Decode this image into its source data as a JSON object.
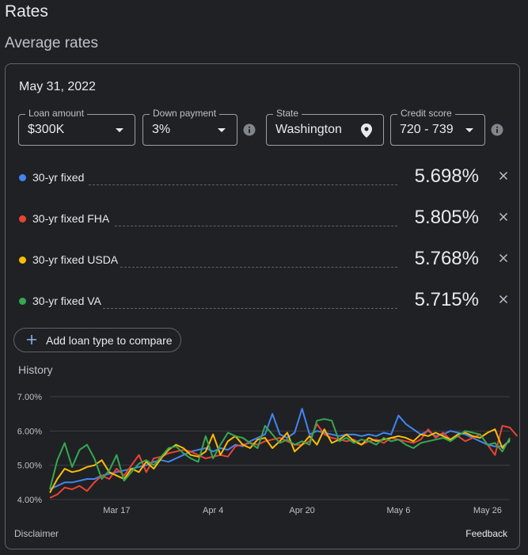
{
  "page_title": "Rates",
  "section_title": "Average rates",
  "date": "May 31, 2022",
  "filters": {
    "loan_amount": {
      "label": "Loan amount",
      "value": "$300K"
    },
    "down_payment": {
      "label": "Down payment",
      "value": "3%"
    },
    "state": {
      "label": "State",
      "value": "Washington"
    },
    "credit_score": {
      "label": "Credit score",
      "value": "720 - 739"
    }
  },
  "rates": [
    {
      "label": "30-yr fixed",
      "value": "5.698%",
      "color": "#4285f4"
    },
    {
      "label": "30-yr fixed FHA",
      "value": "5.805%",
      "color": "#ea4335"
    },
    {
      "label": "30-yr fixed USDA",
      "value": "5.768%",
      "color": "#fbbc04"
    },
    {
      "label": "30-yr fixed VA",
      "value": "5.715%",
      "color": "#34a853"
    }
  ],
  "add_button": "Add loan type to compare",
  "history_label": "History",
  "disclaimer": "Disclaimer",
  "feedback": "Feedback",
  "chart_data": {
    "type": "line",
    "title": "History",
    "y_tick_labels": [
      "7.00%",
      "6.00%",
      "5.00%",
      "4.00%"
    ],
    "y_ticks": [
      7,
      6,
      5,
      4
    ],
    "ylim": [
      4,
      7
    ],
    "x_tick_labels": [
      "Mar 17",
      "Apr 4",
      "Apr 20",
      "May 6",
      "May 26"
    ],
    "x_tick_positions": [
      9,
      22,
      34,
      47,
      59
    ],
    "grid": true,
    "series": [
      {
        "name": "30-yr fixed",
        "color": "#4285f4",
        "values": [
          4.3,
          4.4,
          4.5,
          4.5,
          4.55,
          4.6,
          4.6,
          4.7,
          4.75,
          4.8,
          4.85,
          4.9,
          4.95,
          5.0,
          5.1,
          5.15,
          5.1,
          5.2,
          5.3,
          5.4,
          5.45,
          5.5,
          5.4,
          5.5,
          5.45,
          5.6,
          5.55,
          5.7,
          5.8,
          5.9,
          6.5,
          5.9,
          5.8,
          5.95,
          6.65,
          5.9,
          6.0,
          5.95,
          5.9,
          5.85,
          5.9,
          5.9,
          5.85,
          5.9,
          5.85,
          5.95,
          5.9,
          6.45,
          6.2,
          6.05,
          5.9,
          6.0,
          5.85,
          5.9,
          6.0,
          5.95,
          5.9,
          5.8,
          5.7,
          5.6,
          5.55,
          5.55,
          5.7
        ]
      },
      {
        "name": "30-yr fixed FHA",
        "color": "#ea4335",
        "values": [
          4.05,
          4.15,
          4.35,
          4.3,
          4.4,
          4.25,
          4.5,
          4.7,
          4.6,
          4.9,
          4.7,
          5.0,
          5.3,
          4.8,
          5.2,
          5.25,
          5.35,
          5.4,
          5.45,
          5.4,
          5.3,
          5.2,
          5.25,
          5.3,
          5.25,
          5.55,
          5.6,
          5.65,
          5.6,
          5.7,
          5.75,
          5.8,
          5.7,
          5.6,
          5.6,
          5.7,
          6.2,
          5.9,
          5.8,
          5.75,
          5.7,
          5.75,
          5.6,
          5.7,
          5.75,
          5.65,
          5.8,
          5.75,
          5.7,
          5.65,
          5.75,
          6.05,
          5.8,
          5.95,
          5.75,
          5.85,
          5.7,
          5.8,
          5.9,
          5.6,
          5.3,
          6.15,
          6.1,
          5.85
        ]
      },
      {
        "name": "30-yr fixed USDA",
        "color": "#fbbc04",
        "values": [
          4.2,
          4.6,
          4.9,
          4.8,
          4.85,
          4.95,
          5.0,
          5.15,
          4.8,
          4.7,
          4.6,
          4.9,
          4.8,
          5.1,
          4.9,
          5.2,
          5.45,
          5.6,
          5.5,
          5.3,
          5.25,
          5.4,
          5.9,
          5.3,
          5.7,
          5.85,
          5.6,
          5.5,
          5.75,
          5.8,
          5.5,
          5.7,
          5.95,
          5.4,
          5.6,
          5.85,
          5.6,
          6.05,
          5.65,
          5.75,
          5.9,
          5.7,
          5.6,
          5.8,
          5.7,
          5.75,
          5.8,
          5.85,
          5.8,
          5.7,
          5.9,
          5.85,
          5.95,
          5.85,
          5.75,
          5.9,
          5.95,
          5.85,
          5.8,
          5.95,
          6.05,
          5.5,
          5.75
        ]
      },
      {
        "name": "30-yr fixed VA",
        "color": "#34a853",
        "values": [
          4.3,
          5.15,
          5.65,
          4.95,
          5.45,
          5.6,
          5.2,
          4.6,
          4.85,
          5.3,
          4.55,
          4.8,
          5.05,
          5.15,
          5.0,
          5.25,
          5.5,
          5.55,
          5.35,
          5.2,
          5.1,
          5.85,
          5.2,
          5.6,
          5.95,
          5.85,
          5.8,
          5.65,
          5.5,
          6.15,
          5.9,
          5.65,
          5.75,
          5.6,
          5.7,
          5.6,
          6.3,
          6.35,
          6.3,
          5.7,
          5.8,
          5.65,
          5.75,
          5.7,
          5.6,
          5.8,
          5.7,
          5.75,
          5.6,
          5.5,
          5.65,
          5.7,
          5.75,
          5.8,
          5.7,
          5.85,
          6.0,
          5.95,
          5.9,
          5.6,
          5.65,
          5.4,
          5.8
        ]
      }
    ]
  }
}
